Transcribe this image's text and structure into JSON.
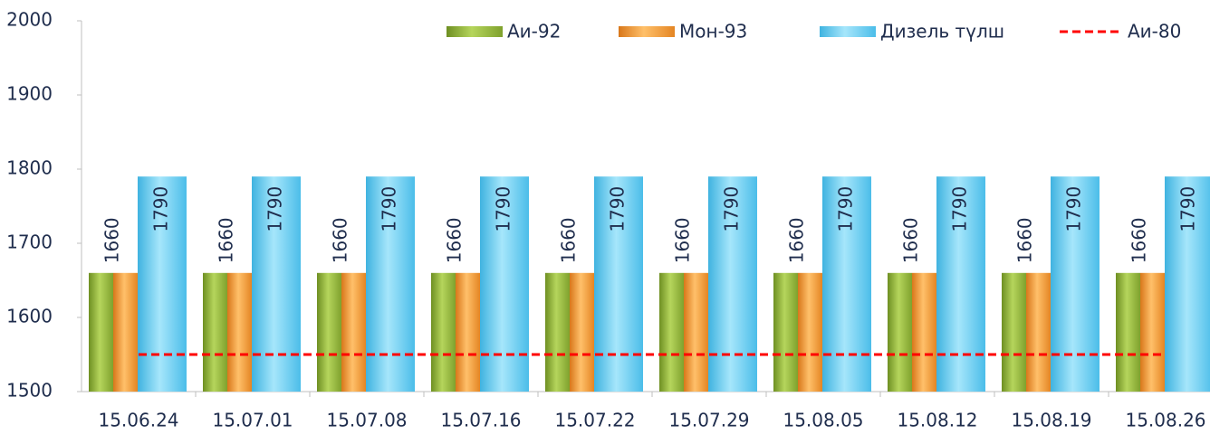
{
  "chart_data": {
    "type": "bar",
    "categories": [
      "15.06.24",
      "15.07.01",
      "15.07.08",
      "15.07.16",
      "15.07.22",
      "15.07.29",
      "15.08.05",
      "15.08.12",
      "15.08.19",
      "15.08.26"
    ],
    "series": [
      {
        "name": "Аи-92",
        "color": "#8db33a",
        "values": [
          1660,
          1660,
          1660,
          1660,
          1660,
          1660,
          1660,
          1660,
          1660,
          1660
        ]
      },
      {
        "name": "Мон-93",
        "color": "#f39a2b",
        "values": [
          1660,
          1660,
          1660,
          1660,
          1660,
          1660,
          1660,
          1660,
          1660,
          1660
        ],
        "labels": true
      },
      {
        "name": "Дизель түлш",
        "color": "#5bc8ef",
        "values": [
          1790,
          1790,
          1790,
          1790,
          1790,
          1790,
          1790,
          1790,
          1790,
          1790
        ],
        "labels": true
      },
      {
        "name": "Аи-80",
        "color": "#ff0000",
        "type": "line",
        "values": [
          1550,
          1550,
          1550,
          1550,
          1550,
          1550,
          1550,
          1550,
          1550,
          1550
        ]
      }
    ],
    "ylim": [
      1500,
      2000
    ],
    "yticks": [
      1500,
      1600,
      1700,
      1800,
      1900,
      2000
    ],
    "legend": "top-right"
  }
}
